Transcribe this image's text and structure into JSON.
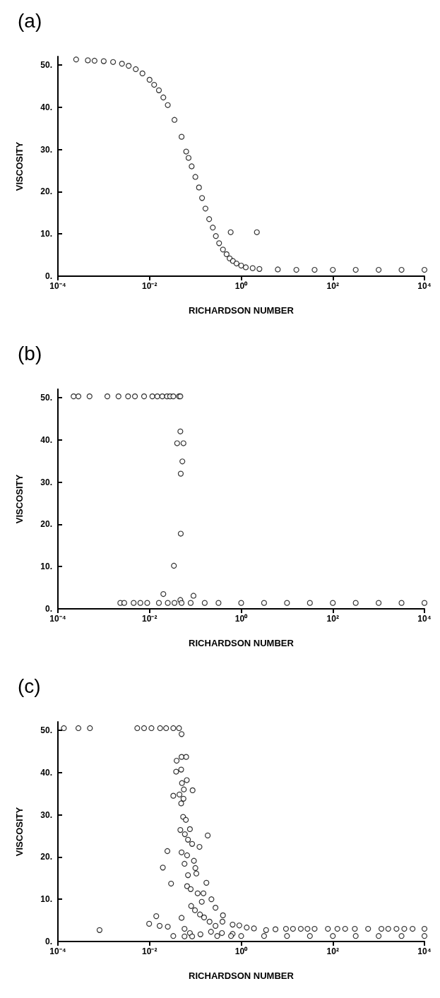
{
  "chart_data": [
    {
      "type": "scatter",
      "title": "(a)",
      "xlabel": "RICHARDSON NUMBER",
      "ylabel": "VISCOSITY",
      "log": "x",
      "grid": false,
      "marker": "circle",
      "xlim": [
        0.0001,
        10000
      ],
      "ylim": [
        0,
        52
      ],
      "xticks": [
        {
          "value": 0.0001,
          "label": "10⁻⁴"
        },
        {
          "value": 0.01,
          "label": "10⁻²"
        },
        {
          "value": 1,
          "label": "10⁰"
        },
        {
          "value": 100,
          "label": "10²"
        },
        {
          "value": 10000,
          "label": "10⁴"
        }
      ],
      "yticks": [
        {
          "value": 0,
          "label": "0."
        },
        {
          "value": 10,
          "label": "10."
        },
        {
          "value": 20,
          "label": "20."
        },
        {
          "value": 30,
          "label": "30."
        },
        {
          "value": 40,
          "label": "40."
        },
        {
          "value": 50,
          "label": "50."
        }
      ],
      "series": [
        {
          "color": "#000000",
          "x": [
            0.00025,
            0.00045,
            0.00063,
            0.001,
            0.0016,
            0.0025,
            0.0035,
            0.005,
            0.007,
            0.01,
            0.0126,
            0.016,
            0.02,
            0.025,
            0.035,
            0.05,
            0.063,
            0.071,
            0.083,
            0.1,
            0.12,
            0.14,
            0.166,
            0.2,
            0.24,
            0.28,
            0.33,
            0.4,
            0.48,
            0.56,
            0.66,
            0.79,
            1,
            1.26,
            1.78,
            2.5,
            6.3,
            16,
            40,
            100,
            316,
            1000,
            3160,
            10000,
            0.59,
            2.2
          ],
          "values": [
            51.3,
            51.1,
            51.0,
            50.9,
            50.7,
            50.3,
            49.8,
            49.0,
            48,
            46.5,
            45.3,
            44,
            42.3,
            40.5,
            37,
            33,
            29.5,
            28,
            26,
            23.5,
            21,
            18.5,
            16,
            13.5,
            11.5,
            9.5,
            7.8,
            6.3,
            5.2,
            4.2,
            3.6,
            3.0,
            2.5,
            2.1,
            1.9,
            1.7,
            1.6,
            1.5,
            1.5,
            1.5,
            1.5,
            1.5,
            1.5,
            1.5,
            10.4,
            10.4
          ]
        }
      ]
    },
    {
      "type": "scatter",
      "title": "(b)",
      "xlabel": "RICHARDSON NUMBER",
      "ylabel": "VISCOSITY",
      "log": "x",
      "grid": false,
      "marker": "circle",
      "xlim": [
        0.0001,
        10000
      ],
      "ylim": [
        0,
        52
      ],
      "xticks": [
        {
          "value": 0.0001,
          "label": "10⁻⁴"
        },
        {
          "value": 0.01,
          "label": "10⁻²"
        },
        {
          "value": 1,
          "label": "10⁰"
        },
        {
          "value": 100,
          "label": "10²"
        },
        {
          "value": 10000,
          "label": "10⁴"
        }
      ],
      "yticks": [
        {
          "value": 0,
          "label": "0."
        },
        {
          "value": 10,
          "label": "10."
        },
        {
          "value": 20,
          "label": "20."
        },
        {
          "value": 30,
          "label": "30."
        },
        {
          "value": 40,
          "label": "40."
        },
        {
          "value": 50,
          "label": "50."
        }
      ],
      "series": [
        {
          "color": "#000000",
          "x": [
            0.00022,
            0.00028,
            0.00049,
            0.0012,
            0.0021,
            0.0034,
            0.0048,
            0.0076,
            0.0115,
            0.0148,
            0.019,
            0.024,
            0.028,
            0.033,
            0.044,
            0.047,
            0.047,
            0.04,
            0.055,
            0.052,
            0.048,
            0.048,
            0.034,
            0.02,
            0.091,
            0.047,
            0.0023,
            0.0028,
            0.0045,
            0.0063,
            0.0089,
            0.016,
            0.025,
            0.035,
            0.05,
            0.079,
            0.16,
            0.32,
            1,
            3.16,
            10,
            31.6,
            100,
            316,
            1000,
            3160,
            10000
          ],
          "values": [
            50.3,
            50.3,
            50.3,
            50.3,
            50.3,
            50.3,
            50.3,
            50.3,
            50.3,
            50.3,
            50.3,
            50.3,
            50.3,
            50.3,
            50.3,
            50.3,
            42.0,
            39.2,
            39.2,
            34.9,
            32.0,
            17.8,
            10.2,
            3.5,
            3.1,
            2.1,
            1.4,
            1.4,
            1.4,
            1.4,
            1.4,
            1.4,
            1.4,
            1.4,
            1.4,
            1.4,
            1.4,
            1.4,
            1.4,
            1.4,
            1.4,
            1.4,
            1.4,
            1.4,
            1.4,
            1.4,
            1.4
          ]
        }
      ]
    },
    {
      "type": "scatter",
      "title": "(c)",
      "xlabel": "RICHARDSON NUMBER",
      "ylabel": "VISCOSITY",
      "log": "x",
      "grid": false,
      "marker": "circle",
      "xlim": [
        0.0001,
        10000
      ],
      "ylim": [
        0,
        52
      ],
      "xticks": [
        {
          "value": 0.0001,
          "label": "10⁻⁴"
        },
        {
          "value": 0.01,
          "label": "10⁻²"
        },
        {
          "value": 1,
          "label": "10⁰"
        },
        {
          "value": 100,
          "label": "10²"
        },
        {
          "value": 10000,
          "label": "10⁴"
        }
      ],
      "yticks": [
        {
          "value": 0,
          "label": "0."
        },
        {
          "value": 10,
          "label": "10."
        },
        {
          "value": 20,
          "label": "20."
        },
        {
          "value": 30,
          "label": "30."
        },
        {
          "value": 40,
          "label": "40."
        },
        {
          "value": 50,
          "label": "50."
        }
      ],
      "series": [
        {
          "color": "#000000",
          "x": [
            0.000135,
            0.00028,
            0.0005,
            0.0054,
            0.0076,
            0.011,
            0.017,
            0.023,
            0.033,
            0.044,
            0.05,
            0.00081,
            0.0098,
            0.014,
            0.0166,
            0.0245,
            0.0195,
            0.0295,
            0.025,
            0.033,
            0.039,
            0.05,
            0.063,
            0.038,
            0.049,
            0.051,
            0.065,
            0.056,
            0.087,
            0.033,
            0.045,
            0.049,
            0.055,
            0.054,
            0.062,
            0.047,
            0.076,
            0.059,
            0.069,
            0.085,
            0.123,
            0.186,
            0.05,
            0.066,
            0.058,
            0.093,
            0.1,
            0.069,
            0.105,
            0.066,
            0.079,
            0.112,
            0.174,
            0.15,
            0.224,
            0.275,
            0.138,
            0.081,
            0.098,
            0.126,
            0.155,
            0.204,
            0.275,
            0.4,
            0.39,
            0.65,
            0.91,
            0.05,
            0.058,
            0.076,
            0.129,
            0.219,
            0.38,
            0.65,
            0.058,
            0.085,
            1.32,
            1.9,
            3.5,
            5.6,
            9.5,
            13.5,
            20,
            28,
            40,
            78,
            126,
            186,
            302,
            589,
            1150,
            1620,
            2450,
            3630,
            5500,
            10000,
            0.3,
            0.6,
            1,
            3.16,
            10,
            31.6,
            100,
            316,
            1000,
            3160,
            10000
          ],
          "values": [
            50.5,
            50.5,
            50.5,
            50.5,
            50.5,
            50.5,
            50.5,
            50.5,
            50.5,
            50.5,
            49.1,
            2.7,
            4.2,
            6.0,
            3.7,
            21.4,
            17.5,
            13.7,
            3.5,
            1.3,
            42.8,
            43.7,
            43.7,
            40.2,
            40.7,
            37.5,
            38.2,
            36.0,
            35.8,
            34.5,
            34.8,
            32.7,
            33.8,
            29.5,
            28.8,
            26.4,
            26.6,
            25.4,
            24.1,
            23.1,
            22.4,
            25.1,
            21.1,
            20.4,
            18.4,
            19.1,
            17.4,
            15.7,
            16.1,
            13.1,
            12.4,
            11.4,
            13.9,
            11.4,
            10.0,
            8.0,
            9.4,
            8.4,
            7.4,
            6.4,
            5.7,
            4.7,
            3.7,
            6.2,
            4.7,
            4.0,
            3.8,
            5.6,
            3.0,
            2.0,
            1.7,
            2.3,
            2.0,
            1.8,
            1.2,
            1.2,
            3.3,
            3.1,
            2.7,
            2.9,
            3.0,
            3.0,
            3.0,
            3.0,
            3.0,
            3.0,
            3.0,
            3.0,
            3.0,
            3.0,
            3.0,
            3.0,
            3.0,
            3.0,
            3.0,
            3.0,
            1.3,
            1.3,
            1.3,
            1.3,
            1.3,
            1.3,
            1.3,
            1.3,
            1.3,
            1.3,
            1.3
          ]
        }
      ]
    }
  ]
}
